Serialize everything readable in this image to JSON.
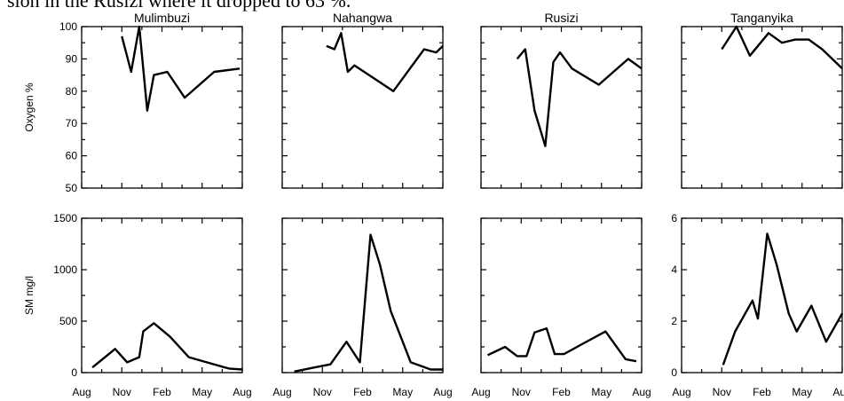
{
  "caption": "sion in the Rusizi where it dropped to 63 %.",
  "row_labels": [
    "Oxygen %",
    "SM mg/l"
  ],
  "x_tick_labels": [
    "Aug",
    "Nov",
    "Feb",
    "May",
    "Aug"
  ],
  "colors": {
    "line": "#000000",
    "axis": "#000000",
    "background": "#ffffff"
  },
  "chart_data": [
    {
      "type": "line",
      "title": "Mulimbuzi",
      "ylabel": "Oxygen %",
      "ylim": [
        50,
        100
      ],
      "yticks": [
        "50",
        "60",
        "70",
        "80",
        "90",
        "100"
      ],
      "x": [
        3.0,
        3.7,
        4.3,
        4.9,
        5.4,
        6.4,
        7.7,
        9.9,
        11.8
      ],
      "y": [
        97,
        86,
        100,
        74,
        85,
        86,
        78,
        86,
        87
      ]
    },
    {
      "type": "line",
      "title": "Nahangwa",
      "ylabel": "",
      "ylim": [
        50,
        100
      ],
      "yticks": [],
      "x": [
        3.3,
        3.9,
        4.4,
        4.9,
        5.4,
        8.3,
        10.6,
        11.5,
        12
      ],
      "y": [
        94,
        93,
        98,
        86,
        88,
        80,
        93,
        92,
        94
      ]
    },
    {
      "type": "line",
      "title": "Rusizi",
      "ylabel": "",
      "ylim": [
        50,
        100
      ],
      "yticks": [],
      "x": [
        2.7,
        3.3,
        4.0,
        4.8,
        5.4,
        5.9,
        6.8,
        8.8,
        11.0,
        12
      ],
      "y": [
        90,
        93,
        74,
        63,
        89,
        92,
        87,
        82,
        90,
        87
      ]
    },
    {
      "type": "line",
      "title": "Tanganyika",
      "ylabel": "",
      "ylim": [
        50,
        100
      ],
      "yticks": [],
      "x": [
        3.0,
        4.1,
        5.1,
        6.5,
        7.5,
        8.5,
        9.5,
        10.5,
        12
      ],
      "y": [
        93,
        100,
        91,
        98,
        95,
        96,
        96,
        93,
        87
      ]
    },
    {
      "type": "line",
      "title": "",
      "ylabel": "SM mg/l",
      "ylim": [
        0,
        1500
      ],
      "yticks": [
        "0",
        "500",
        "1000",
        "1500"
      ],
      "x": [
        0.8,
        2.5,
        3.4,
        4.3,
        4.6,
        5.4,
        6.6,
        8.0,
        11.0,
        12
      ],
      "y": [
        50,
        230,
        100,
        150,
        400,
        480,
        350,
        150,
        40,
        30
      ]
    },
    {
      "type": "line",
      "title": "",
      "ylabel": "",
      "ylim": [
        0,
        1500
      ],
      "yticks": [],
      "x": [
        0.9,
        2.4,
        3.6,
        4.8,
        5.8,
        6.6,
        7.3,
        8.1,
        9.6,
        11.1,
        12
      ],
      "y": [
        10,
        50,
        80,
        300,
        100,
        1340,
        1050,
        600,
        100,
        30,
        30
      ]
    },
    {
      "type": "line",
      "title": "",
      "ylabel": "",
      "ylim": [
        0,
        1500
      ],
      "yticks": [],
      "x": [
        0.5,
        1.8,
        2.7,
        3.4,
        4.0,
        4.9,
        5.5,
        6.2,
        7.6,
        9.3,
        10.8,
        11.6
      ],
      "y": [
        170,
        250,
        160,
        160,
        390,
        430,
        180,
        180,
        280,
        400,
        130,
        110
      ]
    },
    {
      "type": "line",
      "title": "",
      "ylabel": "",
      "ylim": [
        0,
        6
      ],
      "yticks": [
        "0",
        "2",
        "4",
        "6"
      ],
      "x": [
        3.1,
        4.0,
        5.3,
        5.7,
        6.4,
        7.1,
        8.0,
        8.6,
        9.7,
        10.8,
        12
      ],
      "y": [
        0.3,
        1.6,
        2.8,
        2.1,
        5.4,
        4.2,
        2.3,
        1.6,
        2.6,
        1.2,
        2.3
      ]
    }
  ]
}
